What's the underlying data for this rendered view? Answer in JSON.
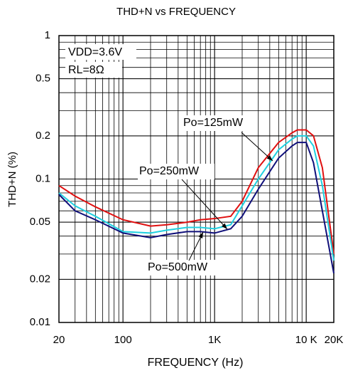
{
  "chart_data": {
    "type": "line",
    "title": "THD+N vs FREQUENCY",
    "xlabel": "FREQUENCY (Hz)",
    "ylabel": "THD+N (%)",
    "annotations": [
      "VDD=3.6V",
      "RL=8Ω"
    ],
    "x": [
      20,
      30,
      50,
      100,
      200,
      300,
      500,
      700,
      1000,
      1500,
      2000,
      3000,
      5000,
      7000,
      8000,
      10000,
      12000,
      15000,
      20000
    ],
    "series": [
      {
        "name": "Po=125mW",
        "color": "#e01010",
        "values": [
          0.09,
          0.076,
          0.064,
          0.052,
          0.047,
          0.048,
          0.05,
          0.052,
          0.053,
          0.055,
          0.07,
          0.12,
          0.18,
          0.21,
          0.22,
          0.22,
          0.2,
          0.12,
          0.03
        ]
      },
      {
        "name": "Po=250mW",
        "color": "#20d0e0",
        "values": [
          0.08,
          0.065,
          0.055,
          0.043,
          0.042,
          0.044,
          0.046,
          0.046,
          0.045,
          0.048,
          0.065,
          0.1,
          0.16,
          0.19,
          0.2,
          0.2,
          0.17,
          0.09,
          0.027
        ]
      },
      {
        "name": "Po=500mW",
        "color": "#10107a",
        "values": [
          0.078,
          0.06,
          0.052,
          0.042,
          0.039,
          0.041,
          0.043,
          0.043,
          0.042,
          0.045,
          0.055,
          0.085,
          0.14,
          0.17,
          0.18,
          0.18,
          0.13,
          0.06,
          0.022
        ]
      }
    ],
    "xscale": "log",
    "yscale": "log",
    "xlim": [
      20,
      20000
    ],
    "ylim": [
      0.01,
      1
    ],
    "xticks": [
      20,
      100,
      {
        "value": 1000,
        "label": "1K"
      },
      {
        "value": 10000,
        "label": "10 K"
      },
      {
        "value": 20000,
        "label": "20K"
      }
    ],
    "yticks": [
      1,
      0.5,
      0.2,
      0.1,
      0.05,
      0.02,
      0.01
    ],
    "grid": true
  }
}
